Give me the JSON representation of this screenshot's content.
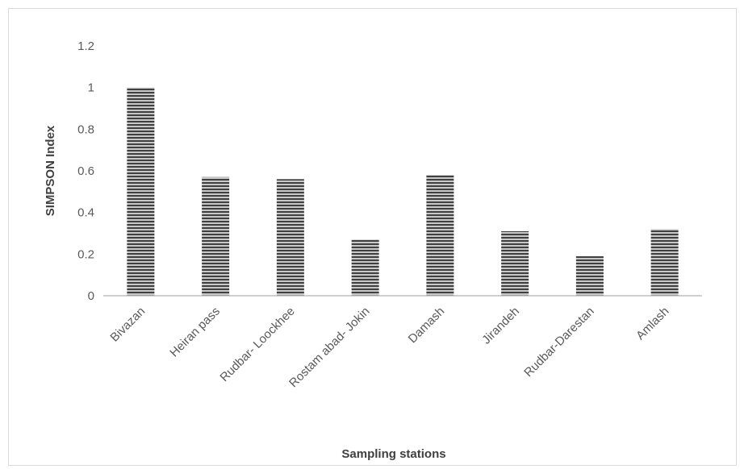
{
  "chart_data": {
    "type": "bar",
    "categories": [
      "Bivazan",
      "Heiran pass",
      "Rudbar- Loockhee",
      "Rostam abad- Jokin",
      "Damash",
      "Jirandeh",
      "Rudbar-Darestan",
      "Amlash"
    ],
    "values": [
      1.0,
      0.57,
      0.56,
      0.27,
      0.58,
      0.31,
      0.19,
      0.32
    ],
    "ylabel": "SIMPSON Index",
    "xlabel": "Sampling stations",
    "ylim": [
      0,
      1.2
    ],
    "yticks": [
      0,
      0.2,
      0.4,
      0.6,
      0.8,
      1,
      1.2
    ],
    "ytick_labels": [
      "0",
      "0.2",
      "0.4",
      "0.6",
      "0.8",
      "1",
      "1.2"
    ],
    "grid": false,
    "legend": "none",
    "bar_style": "horizontal-stripes",
    "colors": {
      "bar_fill": "#bfbfbf",
      "bar_stripe": "#404040",
      "axis": "#bfbfbf",
      "text": "#595959"
    }
  }
}
